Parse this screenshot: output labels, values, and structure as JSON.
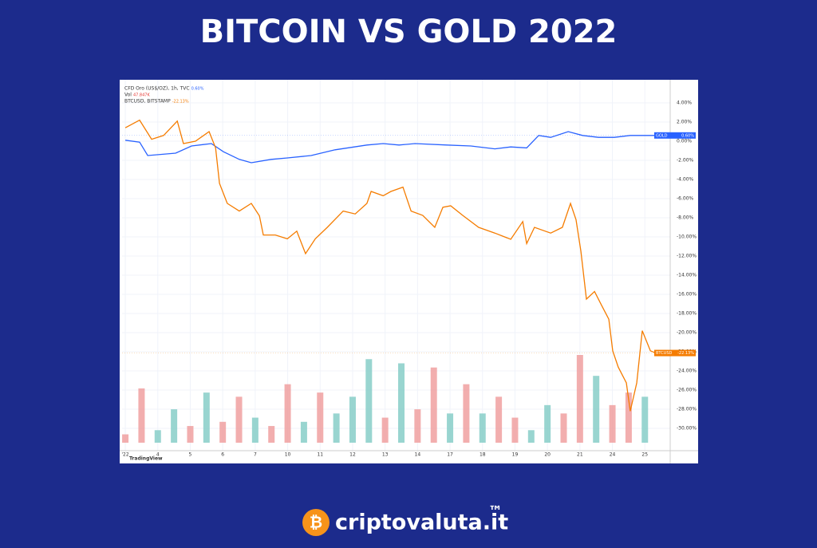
{
  "title": "BITCOIN VS GOLD 2022",
  "brand": {
    "name": "criptovaluta.it",
    "mark": "™"
  },
  "chart_data": {
    "type": "line",
    "legend_lines": [
      "CFD Oro (US$/OZ), 1h, TVC",
      "Vol",
      "BTCUSD, BITSTAMP"
    ],
    "legend_values": [
      "0.60%",
      "47.847K",
      "-22.13%"
    ],
    "watermark": "TradingView",
    "xlim": [
      -0.1,
      16.78
    ],
    "ylim": [
      -32,
      6
    ],
    "xticks": [
      {
        "value": 0,
        "label": "'22"
      },
      {
        "value": 1,
        "label": "4"
      },
      {
        "value": 2,
        "label": "5"
      },
      {
        "value": 3,
        "label": "6"
      },
      {
        "value": 4,
        "label": "7"
      },
      {
        "value": 5,
        "label": "10"
      },
      {
        "value": 6,
        "label": "11"
      },
      {
        "value": 7,
        "label": "12"
      },
      {
        "value": 8,
        "label": "13"
      },
      {
        "value": 9,
        "label": "14"
      },
      {
        "value": 10,
        "label": "17"
      },
      {
        "value": 11,
        "label": "18"
      },
      {
        "value": 12,
        "label": "19"
      },
      {
        "value": 13,
        "label": "20"
      },
      {
        "value": 14,
        "label": "21"
      },
      {
        "value": 15,
        "label": "24"
      },
      {
        "value": 16,
        "label": "25"
      }
    ],
    "yticks": [
      {
        "value": 4,
        "label": "4.00%"
      },
      {
        "value": 2,
        "label": "2.00%"
      },
      {
        "value": 0,
        "label": "0.00%"
      },
      {
        "value": -2,
        "label": "-2.00%"
      },
      {
        "value": -4,
        "label": "-4.00%"
      },
      {
        "value": -6,
        "label": "-6.00%"
      },
      {
        "value": -8,
        "label": "-8.00%"
      },
      {
        "value": -10,
        "label": "-10.00%"
      },
      {
        "value": -12,
        "label": "-12.00%"
      },
      {
        "value": -14,
        "label": "-14.00%"
      },
      {
        "value": -16,
        "label": "-16.00%"
      },
      {
        "value": -18,
        "label": "-18.00%"
      },
      {
        "value": -20,
        "label": "-20.00%"
      },
      {
        "value": -22,
        "label": "-22.00%"
      },
      {
        "value": -24,
        "label": "-24.00%"
      },
      {
        "value": -26,
        "label": "-26.00%"
      },
      {
        "value": -28,
        "label": "-28.00%"
      },
      {
        "value": -30,
        "label": "-30.00%"
      }
    ],
    "grid": true,
    "series": [
      {
        "name": "GOLD",
        "color": "#2962ff",
        "last_label": "0.60%",
        "x": [
          0,
          0.44,
          0.69,
          1.55,
          2.04,
          2.65,
          3.02,
          3.51,
          3.88,
          4.49,
          4.99,
          5.72,
          6.46,
          7.44,
          7.94,
          8.43,
          8.92,
          9.9,
          10.64,
          11.38,
          11.87,
          12.36,
          12.73,
          13.1,
          13.64,
          14.08,
          14.57,
          15.06,
          15.55,
          16.34
        ],
        "values": [
          0.1,
          -0.1,
          -1.5,
          -1.25,
          -0.5,
          -0.25,
          -1.1,
          -1.9,
          -2.25,
          -1.9,
          -1.75,
          -1.5,
          -0.9,
          -0.4,
          -0.25,
          -0.4,
          -0.25,
          -0.4,
          -0.5,
          -0.8,
          -0.6,
          -0.7,
          0.6,
          0.4,
          1,
          0.6,
          0.4,
          0.4,
          0.6,
          0.6
        ]
      },
      {
        "name": "BTCUSD",
        "color": "#f57c00",
        "last_label": "-22.13%",
        "x": [
          0,
          0.44,
          0.81,
          1.18,
          1.6,
          1.79,
          2.16,
          2.58,
          2.78,
          2.9,
          3.14,
          3.51,
          3.88,
          4.13,
          4.25,
          4.62,
          4.99,
          5.28,
          5.55,
          5.85,
          6.22,
          6.71,
          7.08,
          7.44,
          7.57,
          7.94,
          8.18,
          8.55,
          8.8,
          9.16,
          9.53,
          9.78,
          10.02,
          10.39,
          10.88,
          11.38,
          11.87,
          12.24,
          12.36,
          12.6,
          13.1,
          13.46,
          13.71,
          13.88,
          14.03,
          14.2,
          14.45,
          14.69,
          14.89,
          15.01,
          15.18,
          15.43,
          15.55,
          15.75,
          15.92,
          16.17,
          16.34
        ],
        "values": [
          1.4,
          2.2,
          0.2,
          0.6,
          2.1,
          -0.25,
          0,
          1,
          -0.7,
          -4.4,
          -6.5,
          -7.3,
          -6.5,
          -7.8,
          -9.8,
          -9.8,
          -10.2,
          -9.4,
          -11.75,
          -10.2,
          -9,
          -7.3,
          -7.6,
          -6.5,
          -5.25,
          -5.7,
          -5.25,
          -4.8,
          -7.3,
          -7.75,
          -9,
          -6.9,
          -6.75,
          -7.75,
          -9,
          -9.6,
          -10.25,
          -8.4,
          -10.7,
          -9,
          -9.6,
          -9,
          -6.5,
          -8.2,
          -11.5,
          -16.5,
          -15.7,
          -17.3,
          -18.6,
          -21.9,
          -23.6,
          -25.25,
          -28.2,
          -25.25,
          -19.8,
          -21.9,
          -22.13
        ]
      }
    ],
    "volume": {
      "x": [
        0,
        0.5,
        1,
        1.5,
        2,
        2.5,
        3,
        3.5,
        4,
        4.5,
        5,
        5.5,
        6,
        6.5,
        7,
        7.5,
        8,
        8.5,
        9,
        9.5,
        10,
        10.5,
        11,
        11.5,
        12,
        12.5,
        13,
        13.5,
        14,
        14.5,
        15,
        15.5,
        16
      ],
      "values": [
        10,
        65,
        15,
        40,
        20,
        60,
        25,
        55,
        30,
        20,
        70,
        25,
        60,
        35,
        55,
        100,
        30,
        95,
        40,
        90,
        35,
        70,
        35,
        55,
        30,
        15,
        45,
        35,
        105,
        80,
        45,
        60,
        55
      ],
      "colors": [
        "#ef9a9a",
        "#ef9a9a",
        "#80cbc4",
        "#80cbc4",
        "#ef9a9a",
        "#80cbc4",
        "#ef9a9a",
        "#ef9a9a",
        "#80cbc4",
        "#ef9a9a",
        "#ef9a9a",
        "#80cbc4",
        "#ef9a9a",
        "#80cbc4",
        "#80cbc4",
        "#80cbc4",
        "#ef9a9a",
        "#80cbc4",
        "#ef9a9a",
        "#ef9a9a",
        "#80cbc4",
        "#ef9a9a",
        "#80cbc4",
        "#ef9a9a",
        "#ef9a9a",
        "#80cbc4",
        "#80cbc4",
        "#ef9a9a",
        "#ef9a9a",
        "#80cbc4",
        "#ef9a9a",
        "#ef9a9a",
        "#80cbc4"
      ]
    }
  }
}
